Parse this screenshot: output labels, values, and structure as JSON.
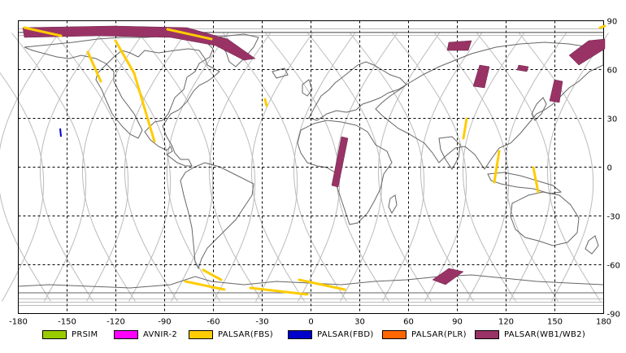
{
  "map": {
    "lon_ticks": [
      "-180",
      "-150",
      "-120",
      "-90",
      "-60",
      "-30",
      "0",
      "30",
      "60",
      "90",
      "120",
      "150",
      "180"
    ],
    "lat_ticks": [
      "90",
      "60",
      "30",
      "0",
      "-30",
      "-60",
      "-90"
    ],
    "lon_values": [
      -180,
      -150,
      -120,
      -90,
      -60,
      -30,
      0,
      30,
      60,
      90,
      120,
      150,
      180
    ],
    "lat_values": [
      90,
      60,
      30,
      0,
      -30,
      -60,
      -90
    ],
    "lon_range": [
      -180,
      180
    ],
    "lat_range": [
      -90,
      90
    ],
    "grid": "dashed, every 30 degrees",
    "projection": "equirectangular world map"
  },
  "legend": {
    "items": [
      {
        "label": "PRSIM",
        "color": "#99cc00"
      },
      {
        "label": "AVNIR-2",
        "color": "#ff00ff"
      },
      {
        "label": "PALSAR(FBS)",
        "color": "#ffcc00"
      },
      {
        "label": "PALSAR(FBD)",
        "color": "#0000cc"
      },
      {
        "label": "PALSAR(PLR)",
        "color": "#ff6600"
      },
      {
        "label": "PALSAR(WB1/WB2)",
        "color": "#993366"
      }
    ]
  },
  "colors": {
    "coastline": "#666666",
    "orbit_track": "#bbbbbb",
    "grid": "#000000",
    "fbs": "#ffcc00",
    "fbd": "#0000cc",
    "wb": "#993366"
  }
}
